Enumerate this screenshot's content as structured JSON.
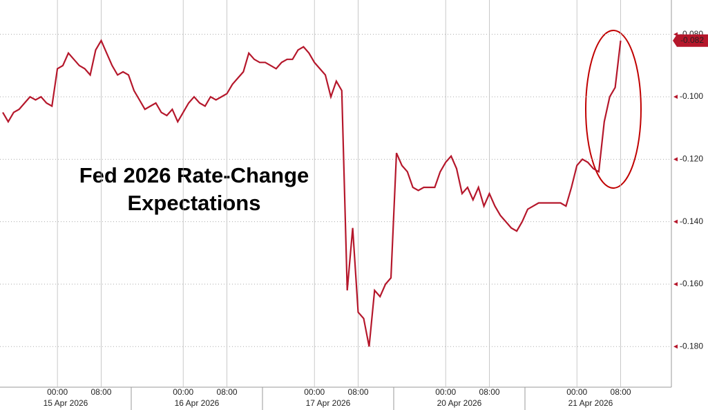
{
  "chart_data": {
    "type": "line",
    "title_lines": [
      "Fed 2026 Rate-Change",
      "Expectations"
    ],
    "color": "#b5172b",
    "ylim": [
      -0.193,
      -0.069
    ],
    "yticks": [
      {
        "value": -0.08,
        "label": "-0.080"
      },
      {
        "value": -0.1,
        "label": "-0.100"
      },
      {
        "value": -0.12,
        "label": "-0.120"
      },
      {
        "value": -0.14,
        "label": "-0.140"
      },
      {
        "value": -0.16,
        "label": "-0.160"
      },
      {
        "value": -0.18,
        "label": "-0.180"
      }
    ],
    "grid": true,
    "days": [
      {
        "date": "15 Apr 2026",
        "categories": [
          null,
          null,
          null,
          null,
          null,
          null,
          null,
          null,
          null,
          null,
          "00:00",
          null,
          null,
          null,
          null,
          null,
          null,
          null,
          "08:00",
          null,
          null,
          null,
          null,
          null
        ],
        "values": [
          -0.105,
          -0.108,
          -0.105,
          -0.104,
          -0.102,
          -0.1,
          -0.101,
          -0.1,
          -0.102,
          -0.103,
          -0.091,
          -0.09,
          -0.086,
          -0.088,
          -0.09,
          -0.091,
          -0.093,
          -0.085,
          -0.082,
          -0.086,
          -0.09,
          -0.093,
          -0.092,
          -0.093
        ]
      },
      {
        "date": "16 Apr 2026",
        "categories": [
          null,
          null,
          null,
          null,
          null,
          null,
          null,
          null,
          null,
          "00:00",
          null,
          null,
          null,
          null,
          null,
          null,
          null,
          "08:00",
          null,
          null,
          null,
          null,
          null,
          null
        ],
        "values": [
          -0.098,
          -0.101,
          -0.104,
          -0.103,
          -0.102,
          -0.105,
          -0.106,
          -0.104,
          -0.108,
          -0.105,
          -0.102,
          -0.1,
          -0.102,
          -0.103,
          -0.1,
          -0.101,
          -0.1,
          -0.099,
          -0.096,
          -0.094,
          -0.092,
          -0.086,
          -0.088,
          -0.089
        ]
      },
      {
        "date": "17 Apr 2026",
        "categories": [
          null,
          null,
          null,
          null,
          null,
          null,
          null,
          null,
          null,
          "00:00",
          null,
          null,
          null,
          null,
          null,
          null,
          null,
          "08:00",
          null,
          null,
          null,
          null,
          null,
          null
        ],
        "values": [
          -0.089,
          -0.09,
          -0.091,
          -0.089,
          -0.088,
          -0.088,
          -0.085,
          -0.084,
          -0.086,
          -0.089,
          -0.091,
          -0.093,
          -0.1,
          -0.095,
          -0.098,
          -0.162,
          -0.142,
          -0.169,
          -0.171,
          -0.18,
          -0.162,
          -0.164,
          -0.16,
          -0.158
        ]
      },
      {
        "date": "20 Apr 2026",
        "categories": [
          null,
          null,
          null,
          null,
          null,
          null,
          null,
          null,
          null,
          "00:00",
          null,
          null,
          null,
          null,
          null,
          null,
          null,
          "08:00",
          null,
          null,
          null,
          null,
          null,
          null
        ],
        "values": [
          -0.118,
          -0.122,
          -0.124,
          -0.129,
          -0.13,
          -0.129,
          -0.129,
          -0.129,
          -0.124,
          -0.121,
          -0.119,
          -0.123,
          -0.131,
          -0.129,
          -0.133,
          -0.129,
          -0.135,
          -0.131,
          -0.135,
          -0.138,
          -0.14,
          -0.142,
          -0.143,
          -0.14
        ]
      },
      {
        "date": "21 Apr 2026",
        "categories": [
          null,
          null,
          null,
          null,
          null,
          null,
          null,
          null,
          null,
          "00:00",
          null,
          null,
          null,
          null,
          null,
          null,
          null,
          "08:00",
          null,
          null,
          null,
          null,
          null,
          null
        ],
        "values": [
          -0.136,
          -0.135,
          -0.134,
          -0.134,
          -0.134,
          -0.134,
          -0.134,
          -0.135,
          -0.129,
          -0.122,
          -0.12,
          -0.121,
          -0.123,
          -0.124,
          -0.108,
          -0.1,
          -0.097,
          -0.082,
          null,
          null,
          null,
          null,
          null,
          null
        ]
      }
    ]
  }
}
